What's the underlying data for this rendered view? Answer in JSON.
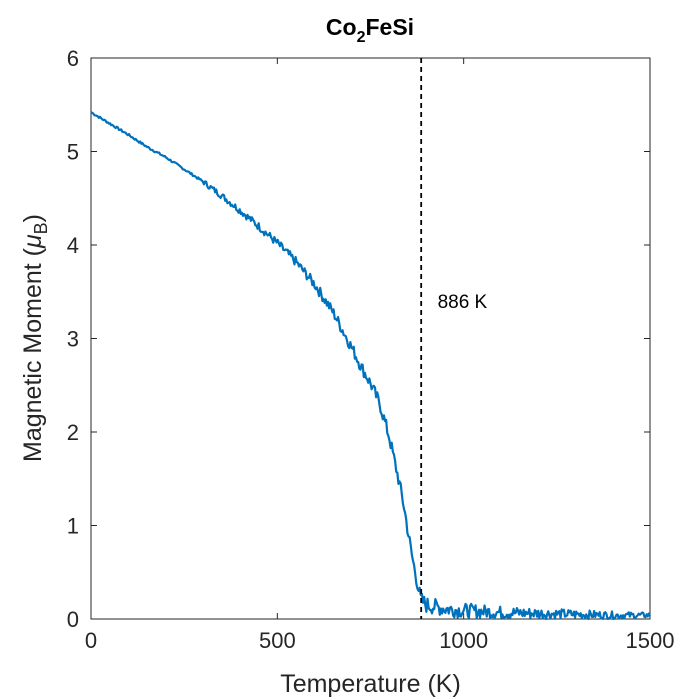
{
  "chart_data": {
    "type": "line",
    "title": {
      "main": "Co",
      "subscript": "2",
      "rest": "FeSi"
    },
    "xlabel": "Temperature (K)",
    "ylabel": {
      "prefix": "Magnetic Moment (",
      "symbol": "μ",
      "subscript": "B",
      "suffix": ")"
    },
    "xlim": [
      0,
      1500
    ],
    "ylim": [
      0,
      6
    ],
    "xticks": [
      0,
      500,
      1000,
      1500
    ],
    "yticks": [
      0,
      1,
      2,
      3,
      4,
      5,
      6
    ],
    "grid": false,
    "series": [
      {
        "color": "#0072BD",
        "x": [
          0,
          50,
          100,
          150,
          200,
          250,
          300,
          350,
          400,
          450,
          500,
          550,
          600,
          650,
          700,
          725,
          750,
          775,
          800,
          825,
          840,
          850,
          860,
          870,
          880,
          886,
          900,
          950,
          1000,
          1050,
          1100,
          1200,
          1300,
          1400,
          1500
        ],
        "y": [
          5.42,
          5.3,
          5.18,
          5.05,
          4.94,
          4.81,
          4.68,
          4.53,
          4.37,
          4.2,
          4.02,
          3.82,
          3.58,
          3.28,
          2.9,
          2.7,
          2.52,
          2.3,
          1.95,
          1.5,
          1.2,
          0.95,
          0.7,
          0.5,
          0.3,
          0.2,
          0.15,
          0.11,
          0.09,
          0.08,
          0.07,
          0.06,
          0.05,
          0.04,
          0.04
        ]
      }
    ],
    "vline": {
      "x": 886,
      "style": "dashed",
      "color": "#000000"
    },
    "annotation": {
      "text": "886 K",
      "x": 930,
      "y": 3.4
    }
  }
}
